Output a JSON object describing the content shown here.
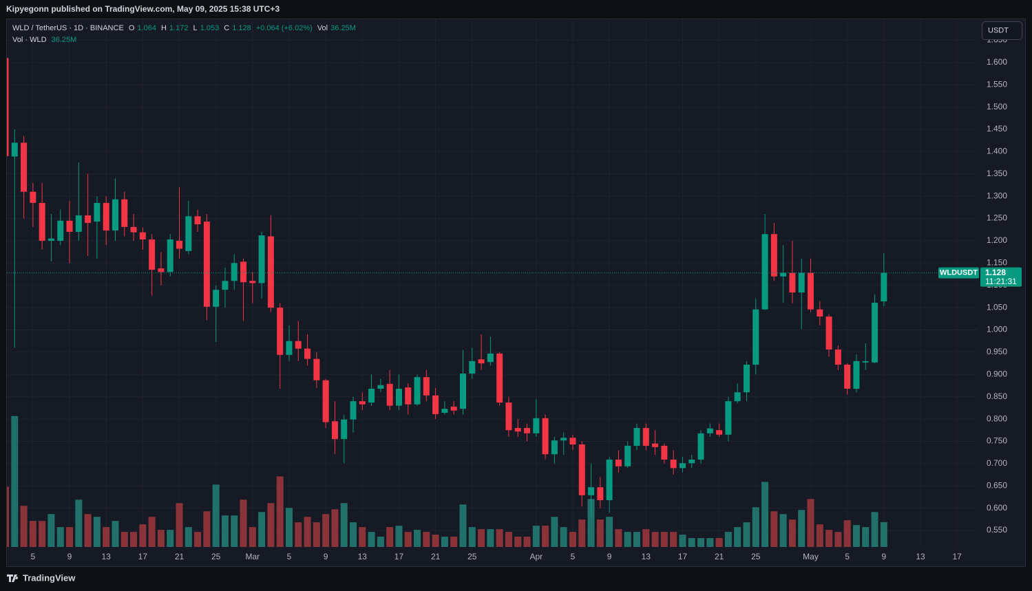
{
  "chart_data": {
    "type": "candlestick",
    "publisher": "Kipyegonn published on TradingView.com, May 09, 2025 15:38 UTC+3",
    "symbol": "WLD / TetherUS · 1D · BINANCE",
    "ohlc_labels": [
      "O",
      "H",
      "L",
      "C"
    ],
    "change": "+0.064 (+6.02%)",
    "volume_name": "Vol",
    "volume_study": "Vol · WLD",
    "currency": "USDT",
    "ticker": "WLDUSDT",
    "countdown": "11:21:31",
    "brand": "TradingView",
    "up_color": "#089981",
    "down_color": "#f23645",
    "volume_up_color": "#22706a",
    "volume_down_color": "#8a3338",
    "grid": true,
    "categories": [
      null,
      null,
      null,
      "5",
      null,
      null,
      null,
      "9",
      null,
      null,
      null,
      "13",
      null,
      null,
      null,
      "17",
      null,
      null,
      null,
      "21",
      null,
      null,
      null,
      "25",
      null,
      null,
      null,
      "Mar",
      null,
      null,
      null,
      "5",
      null,
      null,
      null,
      "9",
      null,
      null,
      null,
      "13",
      null,
      null,
      null,
      "17",
      null,
      null,
      null,
      "21",
      null,
      null,
      null,
      "25",
      null,
      null,
      null,
      null,
      null,
      null,
      "Apr",
      null,
      null,
      null,
      "5",
      null,
      null,
      null,
      "9",
      null,
      null,
      null,
      "13",
      null,
      null,
      null,
      "17",
      null,
      null,
      null,
      "21",
      null,
      null,
      null,
      "25",
      null,
      null,
      null,
      null,
      null,
      "May",
      null,
      null,
      null,
      "5",
      null,
      null,
      null,
      "9",
      null,
      null,
      null,
      "13",
      null,
      null,
      null,
      "17"
    ],
    "open": [
      1.61,
      1.389,
      1.42,
      1.31,
      1.285,
      1.2,
      1.2,
      1.245,
      1.22,
      1.257,
      1.243,
      1.285,
      1.223,
      1.293,
      1.231,
      1.219,
      1.203,
      1.138,
      1.13,
      1.2,
      1.177,
      1.255,
      1.243,
      1.052,
      1.09,
      1.11,
      1.153,
      1.11,
      1.105,
      1.21,
      1.05,
      0.944,
      0.975,
      0.958,
      0.935,
      0.887,
      0.795,
      0.755,
      0.799,
      0.84,
      0.837,
      0.868,
      0.879,
      0.83,
      0.871,
      0.833,
      0.894,
      0.853,
      0.814,
      0.828,
      0.823,
      0.902,
      0.934,
      0.928,
      0.947,
      0.837,
      0.78,
      0.78,
      0.768,
      0.802,
      0.721,
      0.752,
      0.758,
      0.743,
      0.629,
      0.647,
      0.618,
      0.709,
      0.694,
      0.74,
      0.78,
      0.745,
      0.74,
      0.709,
      0.69,
      0.701,
      0.709,
      0.768,
      0.775,
      0.765,
      0.84,
      0.86,
      0.922,
      1.046,
      1.215,
      1.12,
      1.128,
      1.084,
      1.128,
      1.046,
      1.03,
      0.956,
      0.922,
      0.868,
      0.927,
      0.927,
      1.064,
      null,
      null,
      null,
      null,
      null,
      null,
      null,
      null
    ],
    "high": [
      1.62,
      1.45,
      1.435,
      1.33,
      1.33,
      1.26,
      1.27,
      1.29,
      1.376,
      1.35,
      1.3,
      1.3,
      1.34,
      1.31,
      1.26,
      1.23,
      1.215,
      1.175,
      1.215,
      1.32,
      1.29,
      1.27,
      1.26,
      1.1,
      1.14,
      1.17,
      1.16,
      1.13,
      1.22,
      1.257,
      1.06,
      1.01,
      1.02,
      0.99,
      0.95,
      0.89,
      0.84,
      0.81,
      0.85,
      0.86,
      0.9,
      0.89,
      0.91,
      0.9,
      0.88,
      0.9,
      0.91,
      0.87,
      0.84,
      0.84,
      0.955,
      0.96,
      0.99,
      0.985,
      0.95,
      0.85,
      0.8,
      0.79,
      0.845,
      0.81,
      0.76,
      0.77,
      0.765,
      0.75,
      0.7,
      0.67,
      0.715,
      0.73,
      0.75,
      0.79,
      0.79,
      0.775,
      0.745,
      0.73,
      0.715,
      0.72,
      0.775,
      0.79,
      0.79,
      0.85,
      0.88,
      0.93,
      1.07,
      1.26,
      1.24,
      1.19,
      1.2,
      1.16,
      1.16,
      1.065,
      1.035,
      0.965,
      0.925,
      0.945,
      0.97,
      1.08,
      1.172,
      null,
      null,
      null,
      null,
      null,
      null,
      null,
      null
    ],
    "low": [
      1.38,
      0.96,
      1.25,
      1.231,
      1.18,
      1.154,
      1.19,
      1.15,
      1.2,
      1.166,
      1.16,
      1.19,
      1.2,
      1.21,
      1.2,
      1.18,
      1.077,
      1.1,
      1.12,
      1.16,
      1.17,
      1.22,
      1.022,
      0.973,
      1.05,
      1.09,
      1.02,
      1.06,
      1.07,
      1.04,
      0.868,
      0.93,
      0.93,
      0.92,
      0.87,
      0.78,
      0.721,
      0.701,
      0.77,
      0.82,
      0.83,
      0.86,
      0.82,
      0.82,
      0.81,
      0.83,
      0.84,
      0.8,
      0.81,
      0.81,
      0.81,
      0.89,
      0.91,
      0.92,
      0.83,
      0.76,
      0.76,
      0.75,
      0.76,
      0.71,
      0.7,
      0.72,
      0.73,
      0.604,
      0.58,
      0.6,
      0.59,
      0.68,
      0.69,
      0.73,
      0.73,
      0.72,
      0.7,
      0.675,
      0.68,
      0.69,
      0.7,
      0.76,
      0.76,
      0.75,
      0.835,
      0.84,
      0.9,
      1.045,
      1.11,
      1.061,
      1.06,
      1.002,
      1.04,
      1.01,
      0.94,
      0.91,
      0.855,
      0.86,
      0.91,
      0.925,
      1.053,
      null,
      null,
      null,
      null,
      null,
      null,
      null,
      null
    ],
    "close": [
      1.39,
      1.42,
      1.31,
      1.285,
      1.2,
      1.205,
      1.245,
      1.22,
      1.257,
      1.24,
      1.285,
      1.223,
      1.293,
      1.231,
      1.219,
      1.203,
      1.135,
      1.13,
      1.203,
      1.182,
      1.255,
      1.237,
      1.052,
      1.09,
      1.11,
      1.15,
      1.107,
      1.105,
      1.212,
      1.05,
      0.944,
      0.975,
      0.958,
      0.935,
      0.887,
      0.793,
      0.755,
      0.799,
      0.84,
      0.833,
      0.868,
      0.876,
      0.83,
      0.868,
      0.833,
      0.894,
      0.853,
      0.811,
      0.823,
      0.819,
      0.902,
      0.93,
      0.925,
      0.947,
      0.837,
      0.775,
      0.772,
      0.768,
      0.802,
      0.721,
      0.752,
      0.758,
      0.743,
      0.629,
      0.647,
      0.618,
      0.709,
      0.694,
      0.74,
      0.78,
      0.74,
      0.737,
      0.709,
      0.69,
      0.701,
      0.709,
      0.768,
      0.779,
      0.765,
      0.84,
      0.86,
      0.922,
      1.046,
      1.215,
      1.12,
      1.128,
      1.084,
      1.128,
      1.046,
      1.03,
      0.956,
      0.922,
      0.868,
      0.93,
      0.93,
      1.061,
      1.128,
      null,
      null,
      null,
      null,
      null,
      null,
      null,
      null
    ],
    "volume": {
      "values": [
        88,
        191,
        60,
        38,
        38,
        48,
        29,
        29,
        69,
        48,
        44,
        29,
        38,
        22,
        22,
        33,
        44,
        25,
        25,
        64,
        29,
        22,
        52,
        91,
        46,
        46,
        69,
        29,
        51,
        64,
        103,
        57,
        36,
        44,
        36,
        48,
        55,
        64,
        36,
        29,
        22,
        15,
        29,
        31,
        22,
        25,
        22,
        18,
        15,
        15,
        62,
        29,
        26,
        26,
        26,
        22,
        15,
        15,
        31,
        31,
        44,
        29,
        22,
        40,
        70,
        40,
        44,
        26,
        22,
        22,
        26,
        22,
        22,
        22,
        18,
        13,
        13,
        13,
        13,
        22,
        29,
        36,
        58,
        95,
        52,
        48,
        40,
        54,
        70,
        33,
        25,
        22,
        39,
        32,
        29,
        51,
        36.25,
        null,
        null,
        null,
        null,
        null,
        null,
        null,
        null
      ],
      "value_labels": [
        null,
        null,
        null,
        null,
        null,
        null,
        null,
        null,
        null,
        null,
        null,
        null,
        null,
        null,
        null,
        null,
        null,
        null,
        null,
        null,
        null,
        null,
        null,
        null,
        null,
        null,
        null,
        null,
        null,
        null,
        null,
        null,
        null,
        null,
        null,
        null,
        null,
        null,
        null,
        null,
        null,
        null,
        null,
        null,
        null,
        null,
        null,
        null,
        null,
        null,
        null,
        null,
        null,
        null,
        null,
        null,
        null,
        null,
        null,
        null,
        null,
        null,
        null,
        null,
        null,
        null,
        null,
        null,
        null,
        null,
        null,
        null,
        null,
        null,
        null,
        null,
        null,
        null,
        null,
        null,
        null,
        null,
        null,
        null,
        null,
        null,
        null,
        null,
        null,
        null,
        null,
        null,
        null,
        null,
        null,
        null,
        "36.25M",
        null,
        null,
        null,
        null,
        null,
        null,
        null,
        null
      ]
    },
    "ylim": [
      0.513,
      1.697
    ],
    "yticks": [
      {
        "value": 0.55,
        "label": "0.550"
      },
      {
        "value": 0.6,
        "label": "0.600"
      },
      {
        "value": 0.65,
        "label": "0.650"
      },
      {
        "value": 0.7,
        "label": "0.700"
      },
      {
        "value": 0.75,
        "label": "0.750"
      },
      {
        "value": 0.8,
        "label": "0.800"
      },
      {
        "value": 0.85,
        "label": "0.850"
      },
      {
        "value": 0.9,
        "label": "0.900"
      },
      {
        "value": 0.95,
        "label": "0.950"
      },
      {
        "value": 1.0,
        "label": "1.000"
      },
      {
        "value": 1.05,
        "label": "1.050"
      },
      {
        "value": 1.1,
        "label": "1.100"
      },
      {
        "value": 1.15,
        "label": "1.150"
      },
      {
        "value": 1.2,
        "label": "1.200"
      },
      {
        "value": 1.25,
        "label": "1.250"
      },
      {
        "value": 1.3,
        "label": "1.300"
      },
      {
        "value": 1.35,
        "label": "1.350"
      },
      {
        "value": 1.4,
        "label": "1.400"
      },
      {
        "value": 1.45,
        "label": "1.450"
      },
      {
        "value": 1.5,
        "label": "1.500"
      },
      {
        "value": 1.55,
        "label": "1.550"
      },
      {
        "value": 1.6,
        "label": "1.600"
      },
      {
        "value": 1.65,
        "label": "1.650"
      }
    ],
    "y2lim": [
      0,
      770
    ]
  }
}
